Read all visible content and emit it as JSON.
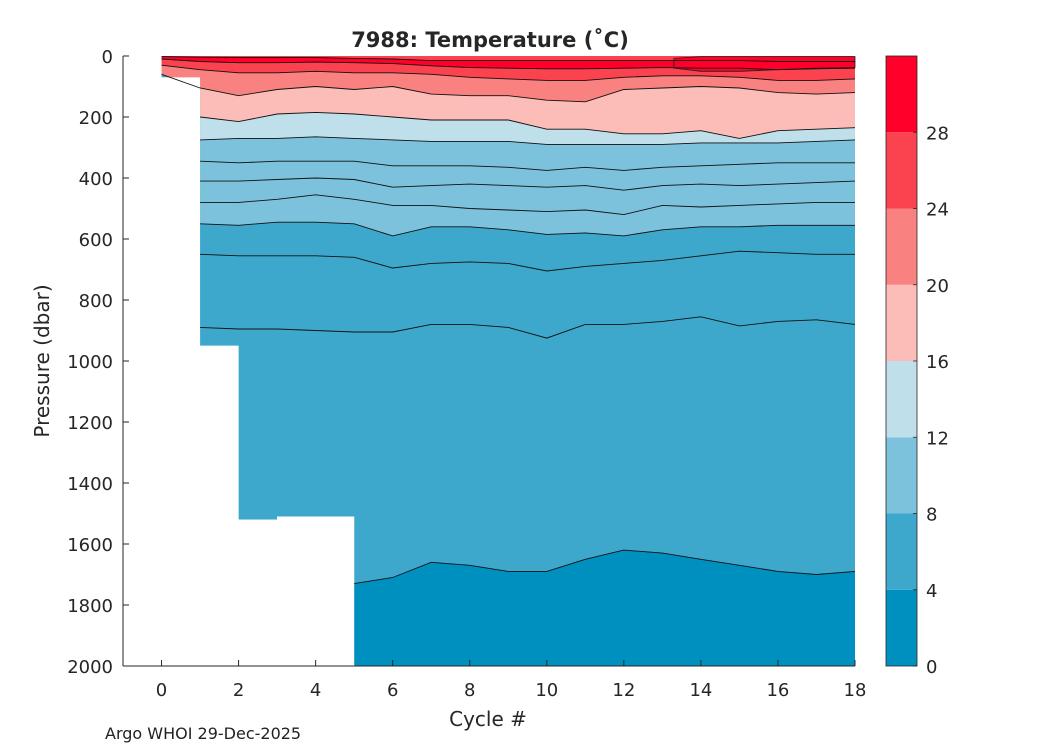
{
  "chart_data": {
    "type": "heatmap",
    "subtype": "filled-contour",
    "title": "7988:  Temperature (˚C)",
    "xlabel": "Cycle #",
    "ylabel": "Pressure (dbar)",
    "xlim": [
      -1,
      18
    ],
    "ylim": [
      2000,
      0
    ],
    "y_reversed": true,
    "xticks": [
      0,
      2,
      4,
      6,
      8,
      10,
      12,
      14,
      16,
      18
    ],
    "yticks": [
      0,
      200,
      400,
      600,
      800,
      1000,
      1200,
      1400,
      1600,
      1800,
      2000
    ],
    "colorbar": {
      "ticks": [
        0,
        4,
        8,
        12,
        16,
        20,
        24,
        28
      ],
      "range": [
        0,
        32
      ],
      "bands": [
        {
          "from": 0,
          "to": 4,
          "color": "#0090c0"
        },
        {
          "from": 4,
          "to": 8,
          "color": "#3ea8cc"
        },
        {
          "from": 8,
          "to": 12,
          "color": "#7cc2dc"
        },
        {
          "from": 12,
          "to": 16,
          "color": "#bfe0ea"
        },
        {
          "from": 16,
          "to": 20,
          "color": "#fcbcb8"
        },
        {
          "from": 20,
          "to": 24,
          "color": "#f98280"
        },
        {
          "from": 24,
          "to": 28,
          "color": "#fb424f"
        },
        {
          "from": 28,
          "to": 32,
          "color": "#ff002a"
        }
      ]
    },
    "profile_max_pressure": {
      "cycles": [
        0,
        1,
        2,
        3,
        4,
        5,
        6,
        7,
        8,
        9,
        10,
        11,
        12,
        13,
        14,
        15,
        16,
        17,
        18
      ],
      "pressure": [
        70,
        950,
        1520,
        1510,
        1510,
        2000,
        2000,
        2000,
        2000,
        2000,
        2000,
        2000,
        2000,
        2000,
        2000,
        2000,
        2000,
        2000,
        2000
      ]
    },
    "shallow_profile": {
      "cycle_from": 0,
      "cycle_to": 1,
      "max_pressure": 70
    },
    "isotherm_4C": {
      "cycles": [
        5,
        6,
        7,
        8,
        9,
        10,
        11,
        12,
        13,
        14,
        15,
        16,
        17,
        18
      ],
      "pressure": [
        1730,
        1710,
        1660,
        1670,
        1690,
        1690,
        1650,
        1620,
        1630,
        1650,
        1670,
        1690,
        1700,
        1690
      ]
    },
    "isolines": [
      {
        "cycles": [
          1,
          2,
          3,
          4,
          5,
          6,
          7,
          8,
          9,
          10,
          11,
          12,
          13,
          14,
          15,
          16,
          17,
          18
        ],
        "pressure": [
          890,
          895,
          895,
          900,
          905,
          905,
          880,
          880,
          890,
          925,
          880,
          880,
          870,
          855,
          885,
          870,
          865,
          880
        ]
      },
      {
        "cycles": [
          1,
          2,
          3,
          4,
          5,
          6,
          7,
          8,
          9,
          10,
          11,
          12,
          13,
          14,
          15,
          16,
          17,
          18
        ],
        "pressure": [
          650,
          655,
          655,
          655,
          660,
          695,
          680,
          675,
          680,
          705,
          690,
          680,
          670,
          655,
          640,
          645,
          650,
          650
        ]
      },
      {
        "cycles": [
          1,
          2,
          3,
          4,
          5,
          6,
          7,
          8,
          9,
          10,
          11,
          12,
          13,
          14,
          15,
          16,
          17,
          18
        ],
        "pressure": [
          550,
          555,
          545,
          545,
          550,
          590,
          560,
          560,
          570,
          585,
          580,
          590,
          570,
          560,
          560,
          555,
          555,
          555
        ]
      },
      {
        "cycles": [
          1,
          2,
          3,
          4,
          5,
          6,
          7,
          8,
          9,
          10,
          11,
          12,
          13,
          14,
          15,
          16,
          17,
          18
        ],
        "pressure": [
          480,
          480,
          470,
          455,
          470,
          490,
          490,
          500,
          505,
          510,
          505,
          520,
          490,
          495,
          490,
          485,
          480,
          480
        ]
      },
      {
        "cycles": [
          1,
          2,
          3,
          4,
          5,
          6,
          7,
          8,
          9,
          10,
          11,
          12,
          13,
          14,
          15,
          16,
          17,
          18
        ],
        "pressure": [
          410,
          410,
          405,
          400,
          405,
          430,
          425,
          420,
          425,
          430,
          425,
          440,
          425,
          420,
          425,
          420,
          415,
          410
        ]
      },
      {
        "cycles": [
          1,
          2,
          3,
          4,
          5,
          6,
          7,
          8,
          9,
          10,
          11,
          12,
          13,
          14,
          15,
          16,
          17,
          18
        ],
        "pressure": [
          345,
          350,
          345,
          345,
          345,
          360,
          360,
          360,
          365,
          375,
          365,
          375,
          365,
          360,
          355,
          350,
          350,
          350
        ]
      },
      {
        "cycles": [
          1,
          2,
          3,
          4,
          5,
          6,
          7,
          8,
          9,
          10,
          11,
          12,
          13,
          14,
          15,
          16,
          17,
          18
        ],
        "pressure": [
          275,
          270,
          270,
          265,
          270,
          275,
          280,
          280,
          280,
          290,
          290,
          290,
          290,
          285,
          285,
          285,
          280,
          275
        ]
      },
      {
        "cycles": [
          1,
          2,
          3,
          4,
          5,
          6,
          7,
          8,
          9,
          10,
          11,
          12,
          13,
          14,
          15,
          16,
          17,
          18
        ],
        "pressure": [
          200,
          215,
          190,
          185,
          190,
          200,
          210,
          210,
          210,
          240,
          240,
          255,
          255,
          245,
          270,
          245,
          240,
          235
        ]
      },
      {
        "cycles": [
          0,
          1,
          2,
          3,
          4,
          5,
          6,
          7,
          8,
          9,
          10,
          11,
          12,
          13,
          14,
          15,
          16,
          17,
          18
        ],
        "pressure": [
          60,
          105,
          130,
          110,
          100,
          110,
          100,
          125,
          130,
          130,
          145,
          150,
          110,
          105,
          100,
          105,
          120,
          125,
          120
        ]
      },
      {
        "cycles": [
          0,
          1,
          2,
          3,
          4,
          5,
          6,
          7,
          8,
          9,
          10,
          11,
          12,
          13,
          14,
          15,
          16,
          17,
          18
        ],
        "pressure": [
          30,
          45,
          55,
          55,
          50,
          55,
          55,
          60,
          70,
          75,
          80,
          80,
          70,
          65,
          65,
          70,
          80,
          80,
          75
        ]
      },
      {
        "cycles": [
          0,
          1,
          2,
          3,
          4,
          5,
          6,
          7,
          8,
          9,
          10,
          11,
          12,
          13,
          14,
          15,
          16,
          17,
          18
        ],
        "pressure": [
          10,
          18,
          22,
          22,
          20,
          22,
          25,
          32,
          38,
          40,
          42,
          42,
          40,
          38,
          40,
          40,
          45,
          42,
          40
        ]
      },
      {
        "cycles": [
          0,
          1,
          2,
          3,
          4,
          5,
          6,
          7,
          8,
          9,
          10,
          11,
          12,
          13,
          14,
          15,
          16,
          17,
          18
        ],
        "pressure": [
          2,
          4,
          5,
          5,
          5,
          8,
          10,
          15,
          15,
          15,
          15,
          15,
          15,
          15,
          15,
          15,
          18,
          18,
          18
        ]
      }
    ],
    "warm_surface_layers": {
      "layer_20_24": {
        "cycles": [
          0,
          1,
          2,
          3,
          4,
          5,
          6,
          7,
          8,
          9,
          10,
          11,
          12,
          13,
          14,
          15,
          16,
          17,
          18
        ],
        "top": [
          10,
          18,
          22,
          22,
          20,
          22,
          25,
          32,
          38,
          40,
          42,
          42,
          40,
          38,
          40,
          40,
          45,
          42,
          40
        ],
        "bottom": [
          30,
          45,
          55,
          55,
          50,
          55,
          55,
          60,
          70,
          75,
          80,
          80,
          70,
          65,
          65,
          70,
          80,
          80,
          75
        ]
      },
      "layer_24_28": {
        "cycles": [
          0,
          1,
          2,
          3,
          4,
          5,
          6,
          7,
          8,
          9,
          10,
          11,
          12,
          13,
          14,
          15,
          16,
          17,
          18
        ],
        "top": [
          2,
          4,
          5,
          5,
          5,
          8,
          10,
          15,
          15,
          15,
          15,
          15,
          15,
          15,
          15,
          15,
          18,
          18,
          18
        ],
        "bottom": [
          10,
          18,
          22,
          22,
          20,
          22,
          25,
          32,
          38,
          40,
          42,
          42,
          40,
          38,
          40,
          40,
          45,
          42,
          40
        ]
      },
      "layer_28_plus": {
        "cycles": [
          13.3,
          14,
          15,
          16,
          17,
          18
        ],
        "top": [
          8,
          2,
          2,
          2,
          2,
          2
        ],
        "bottom": [
          40,
          50,
          50,
          45,
          40,
          38
        ]
      }
    }
  },
  "footer": "Argo WHOI 29-Dec-2025"
}
